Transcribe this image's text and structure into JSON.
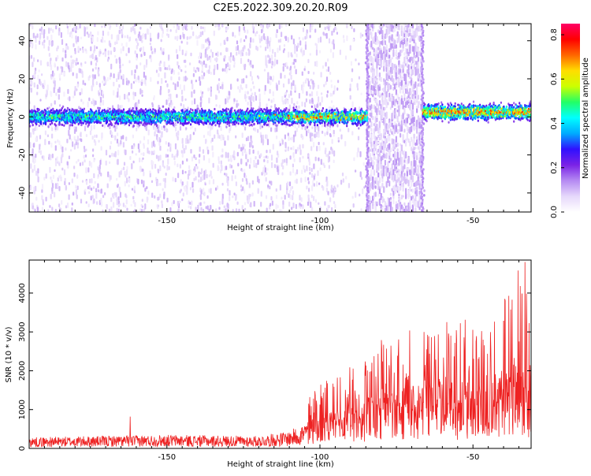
{
  "title": "C2E5.2022.309.20.20.R09",
  "colors": {
    "snr_line": "#ee2222",
    "axis": "#000000",
    "colormap": [
      "#ffffff",
      "#e6d8fb",
      "#b58af2",
      "#7a22e6",
      "#3010ff",
      "#00aaff",
      "#00ffff",
      "#22ff66",
      "#ccff00",
      "#ffdd00",
      "#ff6600",
      "#ff0000",
      "#ff0066"
    ]
  },
  "chart_data": [
    {
      "type": "heatmap",
      "xlabel": "Height of straight line (km)",
      "ylabel": "Frequency (Hz)",
      "xlim": [
        -195,
        -31
      ],
      "ylim": [
        -50,
        49
      ],
      "xticks": [
        -150,
        -100,
        -50
      ],
      "yticks": [
        -40,
        -20,
        0,
        20,
        40
      ],
      "colorbar": {
        "label": "Normalized spectral amplitude",
        "range": [
          0.0,
          0.85
        ],
        "ticks": [
          "0.0",
          "0.2",
          "0.4",
          "0.6",
          "0.8"
        ]
      },
      "features": {
        "centered_band_hz": 0,
        "band_halfwidth_hz": 5,
        "gap_region_km": [
          -84.5,
          -66.5
        ],
        "post_gap_band_offset_hz": 2.5
      }
    },
    {
      "type": "line",
      "xlabel": "Height of straight line (km)",
      "ylabel": "SNR (10 * v/v)",
      "xlim": [
        -195,
        -31
      ],
      "ylim": [
        0,
        4850
      ],
      "xticks": [
        -150,
        -100,
        -50
      ],
      "yticks": [
        0,
        1000,
        2000,
        3000,
        4000
      ],
      "series": [
        {
          "trend_x": [
            -195,
            -150,
            -120,
            -110,
            -102,
            -90,
            -80,
            -70,
            -60,
            -50,
            -40,
            -35,
            -31
          ],
          "trend_y": [
            180,
            220,
            200,
            280,
            500,
            700,
            900,
            1000,
            1050,
            1100,
            1300,
            1500,
            1200
          ],
          "peaks": [
            {
              "x": -162,
              "y": 820
            },
            {
              "x": -100,
              "y": 1120
            },
            {
              "x": -83,
              "y": 2200
            },
            {
              "x": -66,
              "y": 3000
            },
            {
              "x": -58,
              "y": 2950
            },
            {
              "x": -49,
              "y": 2760
            },
            {
              "x": -40,
              "y": 3280
            },
            {
              "x": -34,
              "y": 3980
            },
            {
              "x": -33,
              "y": 4800
            }
          ]
        }
      ]
    }
  ]
}
